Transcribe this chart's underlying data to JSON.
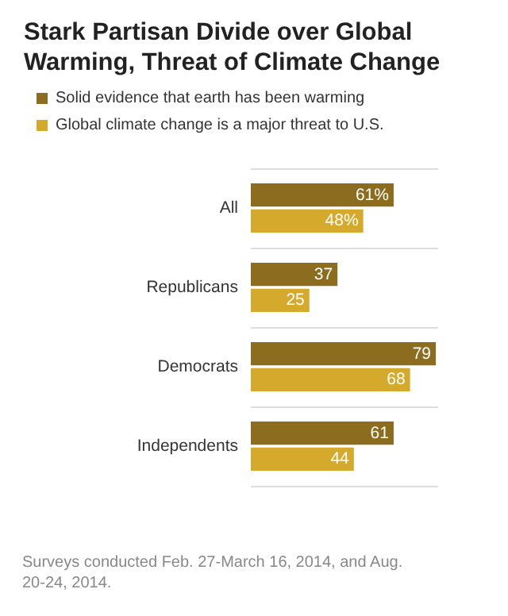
{
  "chart_data": {
    "type": "bar",
    "orientation": "horizontal",
    "title": "Stark Partisan Divide over Global Warming, Threat of Climate Change",
    "categories": [
      "All",
      "Republicans",
      "Democrats",
      "Independents"
    ],
    "series": [
      {
        "name": "Solid evidence that earth has been warming",
        "color": "#8c6d1f",
        "values": [
          61,
          37,
          79,
          61
        ],
        "value_labels": [
          "61%",
          "37",
          "79",
          "61"
        ]
      },
      {
        "name": "Global climate change is a major threat to U.S.",
        "color": "#d5a92c",
        "values": [
          48,
          25,
          68,
          44
        ],
        "value_labels": [
          "48%",
          "25",
          "68",
          "44"
        ]
      }
    ],
    "legend": "top left",
    "grid": "y",
    "annotations": [
      "Surveys conducted Feb. 27-March 16, 2014, and Aug. 20-24, 2014."
    ]
  }
}
